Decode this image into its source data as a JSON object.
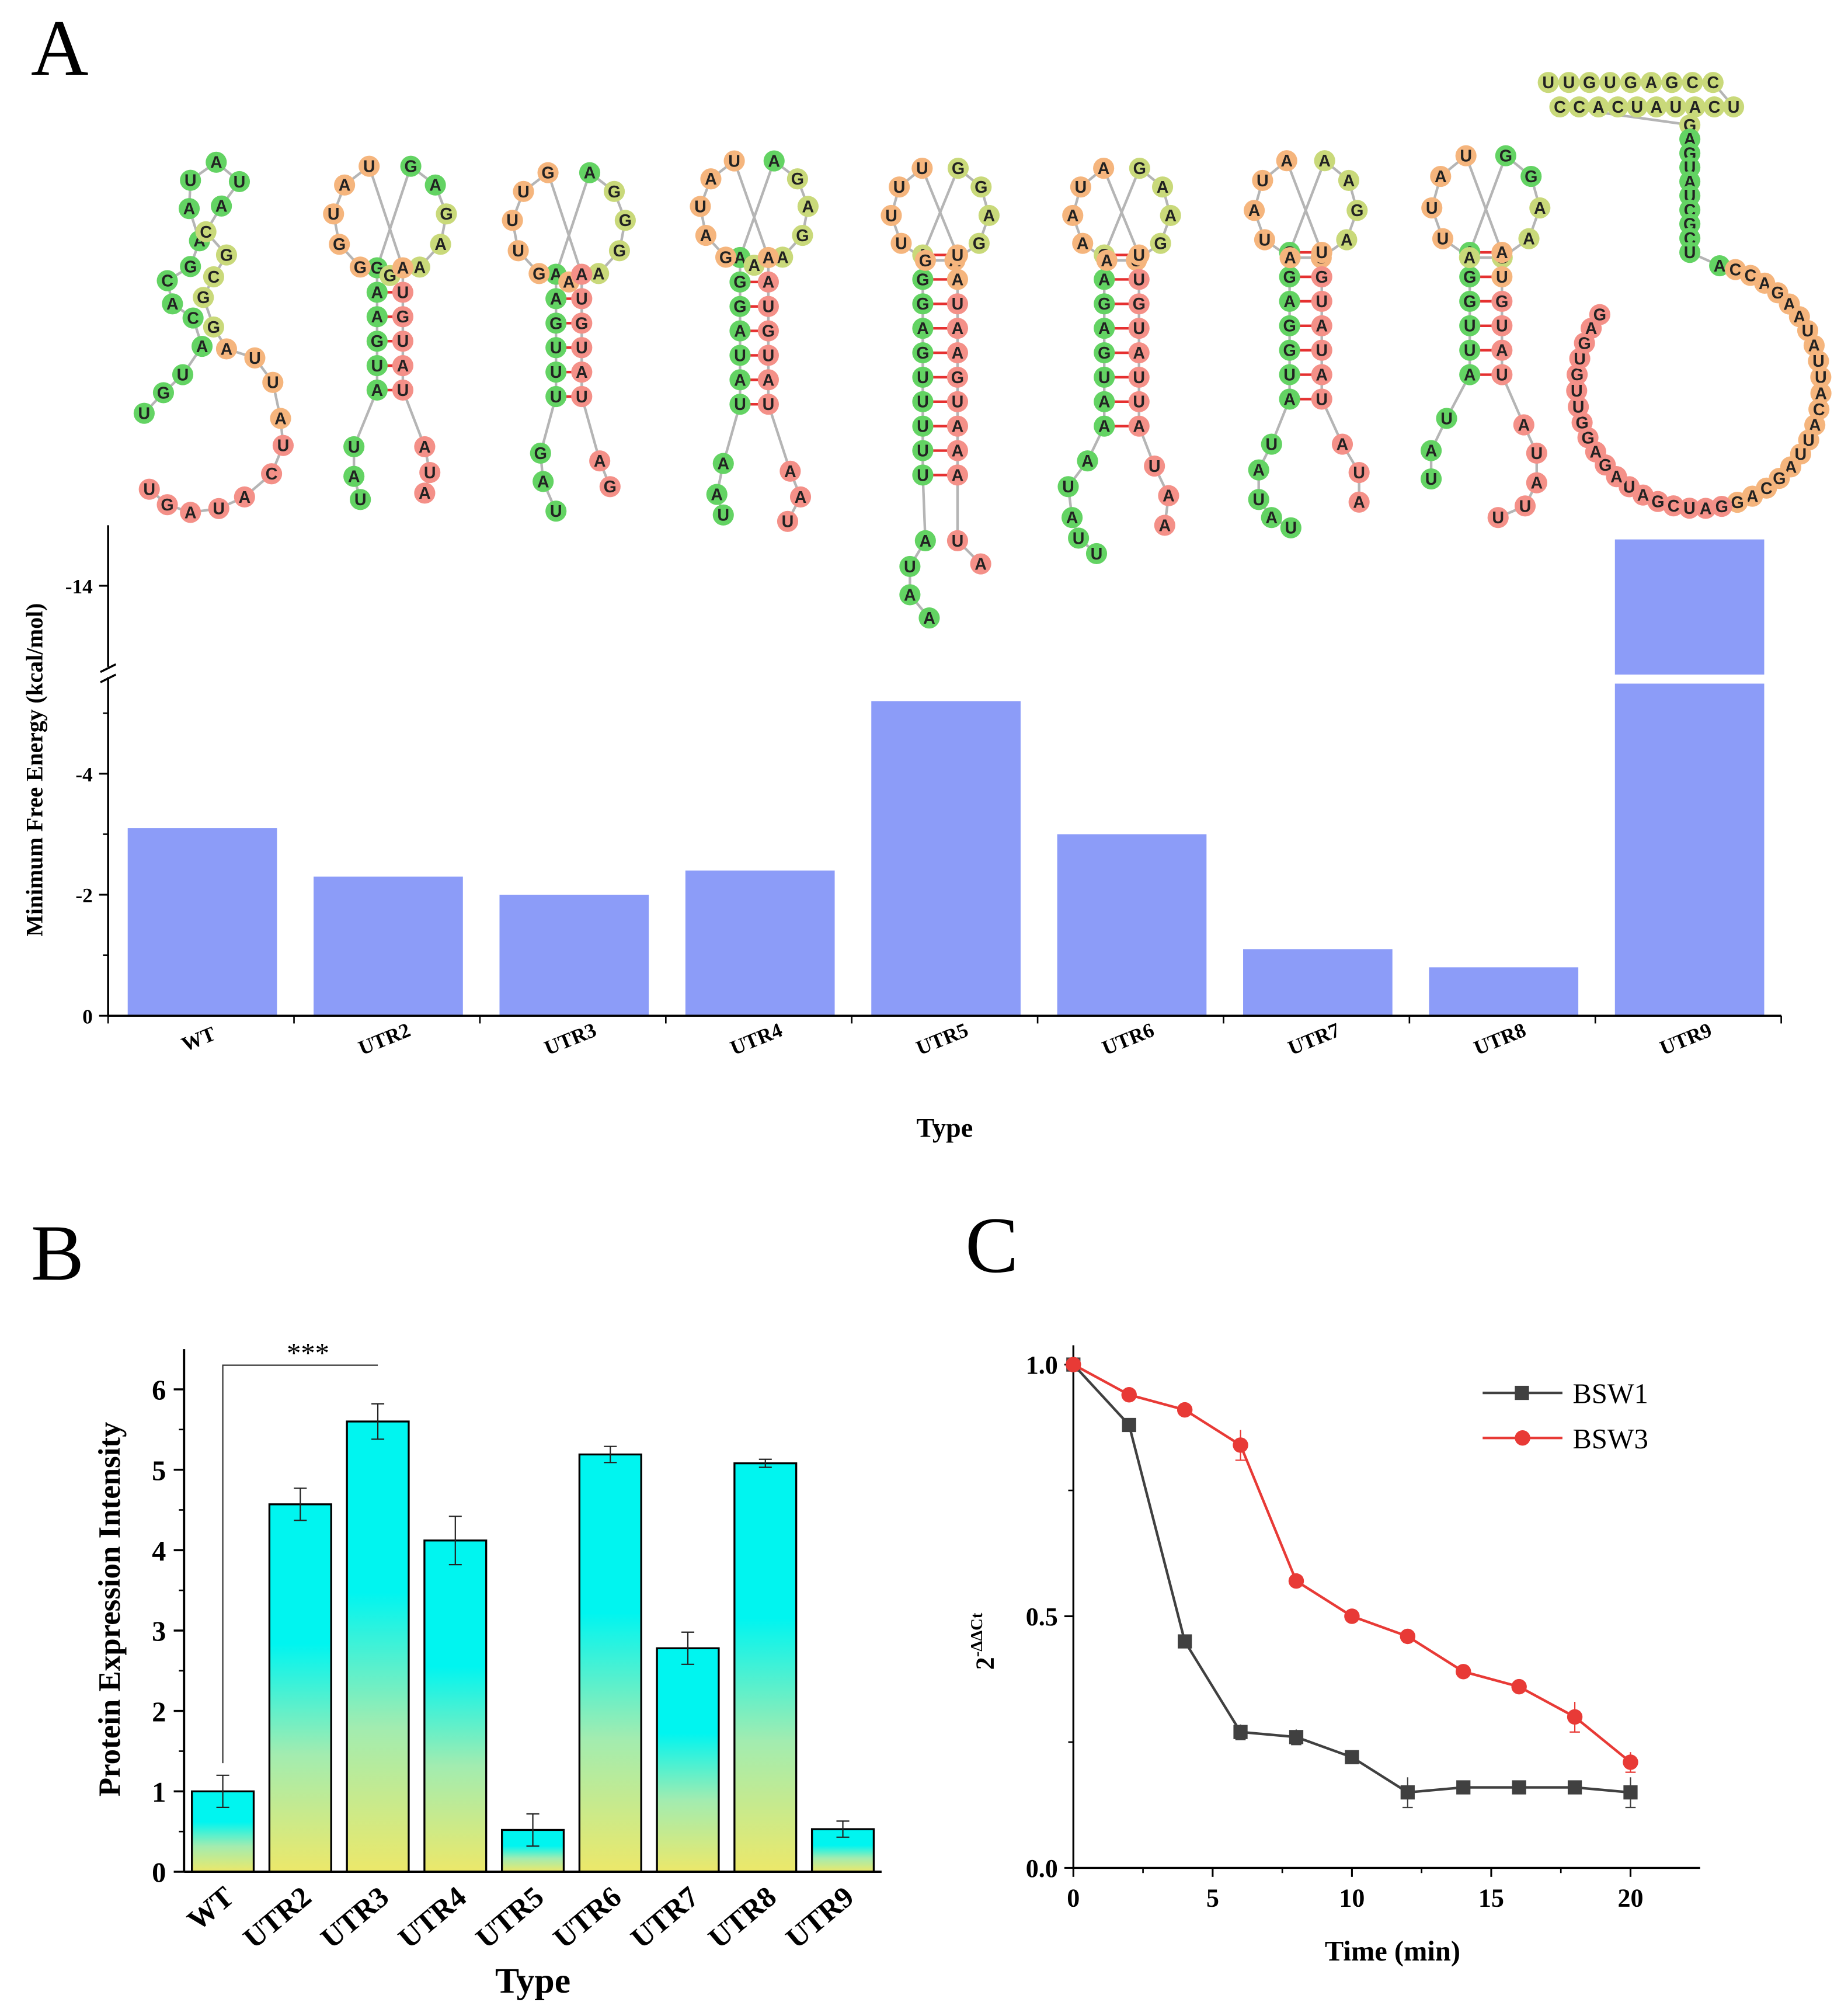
{
  "panels": {
    "a": {
      "letter": "A"
    },
    "b": {
      "letter": "B"
    },
    "c": {
      "letter": "C"
    }
  },
  "colors": {
    "mfe_bar": "#8c9cf8",
    "expr_top": "#00f5f0",
    "expr_bottom": "#ece86a",
    "bsw1": "#404040",
    "bsw3": "#e83a36",
    "rna_green": "#63d363",
    "rna_yellow": "#c9d97a",
    "rna_orange": "#f5b57d",
    "rna_red": "#f49088"
  },
  "chart_data": [
    {
      "id": "A",
      "type": "bar",
      "title": "",
      "xlabel": "Type",
      "ylabel": "Minimum Free Energy (kcal/mol)",
      "categories": [
        "WT",
        "UTR2",
        "UTR3",
        "UTR4",
        "UTR5",
        "UTR6",
        "UTR7",
        "UTR8",
        "UTR9"
      ],
      "values": [
        -3.1,
        -2.3,
        -2.0,
        -2.4,
        -5.2,
        -3.0,
        -1.1,
        -0.8,
        -14.4
      ],
      "y_axis_break": {
        "lower_segment": [
          0,
          -5.4
        ],
        "upper_segment": [
          -13.5,
          -15.0
        ]
      },
      "yticks": [
        "0",
        "-2",
        "-4",
        "-14"
      ],
      "structure_labels": [
        "WT",
        "UTR2",
        "UTR3",
        "UTR4",
        "UTR5",
        "UTR6",
        "UTR7",
        "UTR8",
        "UTR9"
      ]
    },
    {
      "id": "B",
      "type": "bar",
      "title": "",
      "xlabel": "Type",
      "ylabel": "Protein Expression Intensity",
      "categories": [
        "WT",
        "UTR2",
        "UTR3",
        "UTR4",
        "UTR5",
        "UTR6",
        "UTR7",
        "UTR8",
        "UTR9"
      ],
      "values": [
        1.0,
        4.57,
        5.6,
        4.12,
        0.52,
        5.19,
        2.78,
        5.08,
        0.53
      ],
      "errors": [
        0.2,
        0.2,
        0.22,
        0.3,
        0.2,
        0.1,
        0.2,
        0.05,
        0.1
      ],
      "ylim": [
        0,
        6.5
      ],
      "yticks": [
        "0",
        "1",
        "2",
        "3",
        "4",
        "5",
        "6"
      ],
      "significance": {
        "from": "WT",
        "to": "UTR3",
        "label": "***"
      }
    },
    {
      "id": "C",
      "type": "line",
      "title": "",
      "xlabel": "Time (min)",
      "ylabel": "2",
      "ylabel_sup": "-ΔΔCt",
      "xlim": [
        0,
        22.5
      ],
      "ylim": [
        0,
        1.0
      ],
      "xticks": [
        "0",
        "5",
        "10",
        "15",
        "20"
      ],
      "yticks": [
        "0.0",
        "0.5",
        "1.0"
      ],
      "legend": "top-right",
      "series": [
        {
          "name": "BSW1",
          "marker": "square",
          "x": [
            0,
            2,
            4,
            6,
            8,
            10,
            12,
            14,
            16,
            18,
            20
          ],
          "y": [
            1.0,
            0.88,
            0.45,
            0.27,
            0.26,
            0.22,
            0.15,
            0.16,
            0.16,
            0.16,
            0.15
          ],
          "err": [
            0,
            0.01,
            0.01,
            0.015,
            0.015,
            0.01,
            0.03,
            0.01,
            0.01,
            0.01,
            0.03
          ]
        },
        {
          "name": "BSW3",
          "marker": "circle",
          "x": [
            0,
            2,
            4,
            6,
            8,
            10,
            12,
            14,
            16,
            18,
            20
          ],
          "y": [
            1.0,
            0.94,
            0.91,
            0.84,
            0.57,
            0.5,
            0.46,
            0.39,
            0.36,
            0.3,
            0.21
          ],
          "err": [
            0,
            0.01,
            0.01,
            0.03,
            0.01,
            0.01,
            0.01,
            0.01,
            0.01,
            0.03,
            0.02
          ]
        }
      ]
    }
  ]
}
